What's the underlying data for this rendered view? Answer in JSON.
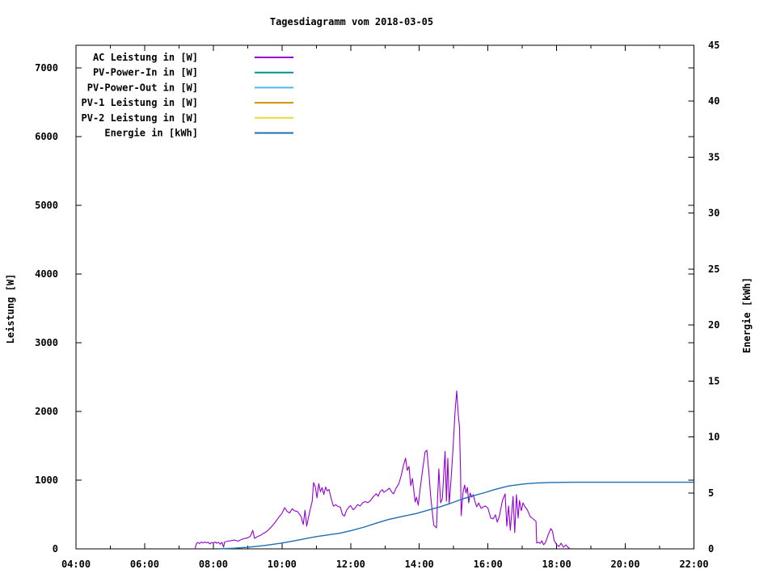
{
  "title": "Tagesdiagramm vom 2018-03-05",
  "y_left_label": "Leistung [W]",
  "y_right_label": "Energie [kWh]",
  "chart_data": {
    "type": "line",
    "title": "Tagesdiagramm vom 2018-03-05",
    "xlabel": "",
    "ylabel": "Leistung [W]",
    "y2label": "Energie [kWh]",
    "x_unit": "hour_of_day",
    "xlim": [
      4,
      22
    ],
    "ylim": [
      0,
      7330
    ],
    "y2lim": [
      0,
      45
    ],
    "grid": false,
    "legend_position": "top-left-inside",
    "x_ticks": [
      {
        "h": 4,
        "label": "04:00"
      },
      {
        "h": 6,
        "label": "06:00"
      },
      {
        "h": 8,
        "label": "08:00"
      },
      {
        "h": 10,
        "label": "10:00"
      },
      {
        "h": 12,
        "label": "12:00"
      },
      {
        "h": 14,
        "label": "14:00"
      },
      {
        "h": 16,
        "label": "16:00"
      },
      {
        "h": 18,
        "label": "18:00"
      },
      {
        "h": 20,
        "label": "20:00"
      },
      {
        "h": 22,
        "label": "22:00"
      }
    ],
    "x_minor_ticks": [
      5,
      7,
      9,
      11,
      13,
      15,
      17,
      19,
      21
    ],
    "y_left_ticks": [
      {
        "v": 0,
        "label": "0"
      },
      {
        "v": 1000,
        "label": "1000"
      },
      {
        "v": 2000,
        "label": "2000"
      },
      {
        "v": 3000,
        "label": "3000"
      },
      {
        "v": 4000,
        "label": "4000"
      },
      {
        "v": 5000,
        "label": "5000"
      },
      {
        "v": 6000,
        "label": "6000"
      },
      {
        "v": 7000,
        "label": "7000"
      }
    ],
    "y_right_ticks": [
      {
        "v": 0,
        "label": "0"
      },
      {
        "v": 5,
        "label": "5"
      },
      {
        "v": 10,
        "label": "10"
      },
      {
        "v": 15,
        "label": "15"
      },
      {
        "v": 20,
        "label": "20"
      },
      {
        "v": 25,
        "label": "25"
      },
      {
        "v": 30,
        "label": "30"
      },
      {
        "v": 35,
        "label": "35"
      },
      {
        "v": 40,
        "label": "40"
      },
      {
        "v": 45,
        "label": "45"
      }
    ],
    "series": [
      {
        "id": "ac",
        "name": "AC Leistung in [W]",
        "color": "#9400d3",
        "axis": "left",
        "points": [
          [
            7.47,
            0
          ],
          [
            7.5,
            70
          ],
          [
            7.55,
            95
          ],
          [
            7.6,
            78
          ],
          [
            7.65,
            100
          ],
          [
            7.7,
            85
          ],
          [
            7.75,
            100
          ],
          [
            7.8,
            88
          ],
          [
            7.85,
            96
          ],
          [
            7.9,
            72
          ],
          [
            7.95,
            92
          ],
          [
            8.0,
            88
          ],
          [
            8.05,
            100
          ],
          [
            8.1,
            82
          ],
          [
            8.15,
            95
          ],
          [
            8.2,
            68
          ],
          [
            8.25,
            95
          ],
          [
            8.3,
            25
          ],
          [
            8.33,
            100
          ],
          [
            8.42,
            112
          ],
          [
            8.52,
            120
          ],
          [
            8.62,
            128
          ],
          [
            8.72,
            112
          ],
          [
            8.82,
            138
          ],
          [
            8.92,
            152
          ],
          [
            9.0,
            160
          ],
          [
            9.08,
            185
          ],
          [
            9.15,
            270
          ],
          [
            9.2,
            152
          ],
          [
            9.28,
            178
          ],
          [
            9.38,
            198
          ],
          [
            9.47,
            228
          ],
          [
            9.55,
            252
          ],
          [
            9.63,
            288
          ],
          [
            9.72,
            335
          ],
          [
            9.83,
            405
          ],
          [
            9.92,
            470
          ],
          [
            10.0,
            515
          ],
          [
            10.08,
            600
          ],
          [
            10.15,
            545
          ],
          [
            10.22,
            522
          ],
          [
            10.3,
            585
          ],
          [
            10.37,
            552
          ],
          [
            10.45,
            545
          ],
          [
            10.55,
            478
          ],
          [
            10.62,
            355
          ],
          [
            10.67,
            562
          ],
          [
            10.72,
            330
          ],
          [
            10.78,
            480
          ],
          [
            10.83,
            590
          ],
          [
            10.88,
            690
          ],
          [
            10.92,
            965
          ],
          [
            10.97,
            905
          ],
          [
            11.02,
            742
          ],
          [
            11.07,
            950
          ],
          [
            11.12,
            832
          ],
          [
            11.17,
            892
          ],
          [
            11.22,
            790
          ],
          [
            11.27,
            900
          ],
          [
            11.32,
            842
          ],
          [
            11.37,
            865
          ],
          [
            11.45,
            700
          ],
          [
            11.5,
            622
          ],
          [
            11.57,
            642
          ],
          [
            11.63,
            618
          ],
          [
            11.7,
            608
          ],
          [
            11.76,
            500
          ],
          [
            11.82,
            478
          ],
          [
            11.88,
            560
          ],
          [
            11.95,
            612
          ],
          [
            12.0,
            628
          ],
          [
            12.07,
            570
          ],
          [
            12.13,
            592
          ],
          [
            12.2,
            645
          ],
          [
            12.28,
            625
          ],
          [
            12.35,
            672
          ],
          [
            12.43,
            688
          ],
          [
            12.5,
            672
          ],
          [
            12.58,
            705
          ],
          [
            12.67,
            765
          ],
          [
            12.75,
            802
          ],
          [
            12.8,
            765
          ],
          [
            12.85,
            825
          ],
          [
            12.92,
            862
          ],
          [
            12.97,
            825
          ],
          [
            13.03,
            845
          ],
          [
            13.13,
            882
          ],
          [
            13.2,
            825
          ],
          [
            13.25,
            800
          ],
          [
            13.32,
            880
          ],
          [
            13.4,
            942
          ],
          [
            13.47,
            1060
          ],
          [
            13.53,
            1200
          ],
          [
            13.6,
            1320
          ],
          [
            13.65,
            1142
          ],
          [
            13.7,
            1200
          ],
          [
            13.75,
            920
          ],
          [
            13.8,
            1025
          ],
          [
            13.88,
            682
          ],
          [
            13.92,
            752
          ],
          [
            13.97,
            635
          ],
          [
            14.03,
            895
          ],
          [
            14.1,
            1165
          ],
          [
            14.17,
            1410
          ],
          [
            14.22,
            1435
          ],
          [
            14.28,
            1106
          ],
          [
            14.33,
            776
          ],
          [
            14.42,
            341
          ],
          [
            14.5,
            306
          ],
          [
            14.53,
            694
          ],
          [
            14.57,
            1165
          ],
          [
            14.62,
            670
          ],
          [
            14.67,
            729
          ],
          [
            14.75,
            1420
          ],
          [
            14.79,
            694
          ],
          [
            14.83,
            1318
          ],
          [
            14.87,
            660
          ],
          [
            14.91,
            906
          ],
          [
            14.96,
            1282
          ],
          [
            15.0,
            1612
          ],
          [
            15.04,
            1988
          ],
          [
            15.09,
            2300
          ],
          [
            15.13,
            1988
          ],
          [
            15.17,
            1776
          ],
          [
            15.2,
            1165
          ],
          [
            15.22,
            482
          ],
          [
            15.27,
            812
          ],
          [
            15.32,
            929
          ],
          [
            15.36,
            812
          ],
          [
            15.4,
            894
          ],
          [
            15.44,
            670
          ],
          [
            15.48,
            812
          ],
          [
            15.53,
            753
          ],
          [
            15.57,
            788
          ],
          [
            15.62,
            694
          ],
          [
            15.67,
            612
          ],
          [
            15.73,
            668
          ],
          [
            15.8,
            590
          ],
          [
            15.87,
            612
          ],
          [
            15.93,
            625
          ],
          [
            16.0,
            590
          ],
          [
            16.08,
            450
          ],
          [
            16.15,
            437
          ],
          [
            16.22,
            495
          ],
          [
            16.27,
            390
          ],
          [
            16.33,
            470
          ],
          [
            16.42,
            700
          ],
          [
            16.5,
            800
          ],
          [
            16.55,
            330
          ],
          [
            16.6,
            625
          ],
          [
            16.65,
            270
          ],
          [
            16.73,
            765
          ],
          [
            16.78,
            235
          ],
          [
            16.83,
            790
          ],
          [
            16.88,
            450
          ],
          [
            16.92,
            705
          ],
          [
            16.97,
            555
          ],
          [
            17.02,
            670
          ],
          [
            17.08,
            612
          ],
          [
            17.15,
            565
          ],
          [
            17.23,
            470
          ],
          [
            17.32,
            435
          ],
          [
            17.4,
            400
          ],
          [
            17.42,
            85
          ],
          [
            17.47,
            95
          ],
          [
            17.52,
            80
          ],
          [
            17.57,
            118
          ],
          [
            17.62,
            60
          ],
          [
            17.68,
            95
          ],
          [
            17.75,
            200
          ],
          [
            17.83,
            295
          ],
          [
            17.88,
            258
          ],
          [
            17.93,
            120
          ],
          [
            18.0,
            60
          ],
          [
            18.07,
            35
          ],
          [
            18.13,
            82
          ],
          [
            18.2,
            25
          ],
          [
            18.27,
            58
          ],
          [
            18.33,
            22
          ],
          [
            18.4,
            0
          ]
        ]
      },
      {
        "id": "pv_in",
        "name": "PV-Power-In in [W]",
        "color": "#009688",
        "axis": "left",
        "points": []
      },
      {
        "id": "pv_out",
        "name": "PV-Power-Out in [W]",
        "color": "#56b4e9",
        "axis": "left",
        "points": []
      },
      {
        "id": "pv1",
        "name": "PV-1 Leistung in [W]",
        "color": "#d99000",
        "axis": "left",
        "points": []
      },
      {
        "id": "pv2",
        "name": "PV-2 Leistung in [W]",
        "color": "#e6dc32",
        "axis": "left",
        "points": []
      },
      {
        "id": "energie",
        "name": "Energie in [kWh]",
        "color": "#1d6eb2",
        "axis": "right",
        "points": [
          [
            8.15,
            0
          ],
          [
            8.6,
            0.06
          ],
          [
            9.0,
            0.14
          ],
          [
            9.5,
            0.3
          ],
          [
            10.0,
            0.52
          ],
          [
            10.5,
            0.8
          ],
          [
            11.0,
            1.1
          ],
          [
            11.35,
            1.25
          ],
          [
            11.7,
            1.4
          ],
          [
            12.0,
            1.62
          ],
          [
            12.4,
            1.95
          ],
          [
            12.75,
            2.3
          ],
          [
            13.1,
            2.62
          ],
          [
            13.5,
            2.9
          ],
          [
            13.9,
            3.15
          ],
          [
            14.25,
            3.45
          ],
          [
            14.6,
            3.75
          ],
          [
            14.85,
            4.0
          ],
          [
            15.2,
            4.4
          ],
          [
            15.5,
            4.68
          ],
          [
            15.9,
            5.02
          ],
          [
            16.2,
            5.3
          ],
          [
            16.6,
            5.62
          ],
          [
            17.05,
            5.8
          ],
          [
            17.4,
            5.88
          ],
          [
            17.8,
            5.93
          ],
          [
            18.5,
            5.95
          ],
          [
            22.0,
            5.95
          ]
        ]
      }
    ]
  }
}
